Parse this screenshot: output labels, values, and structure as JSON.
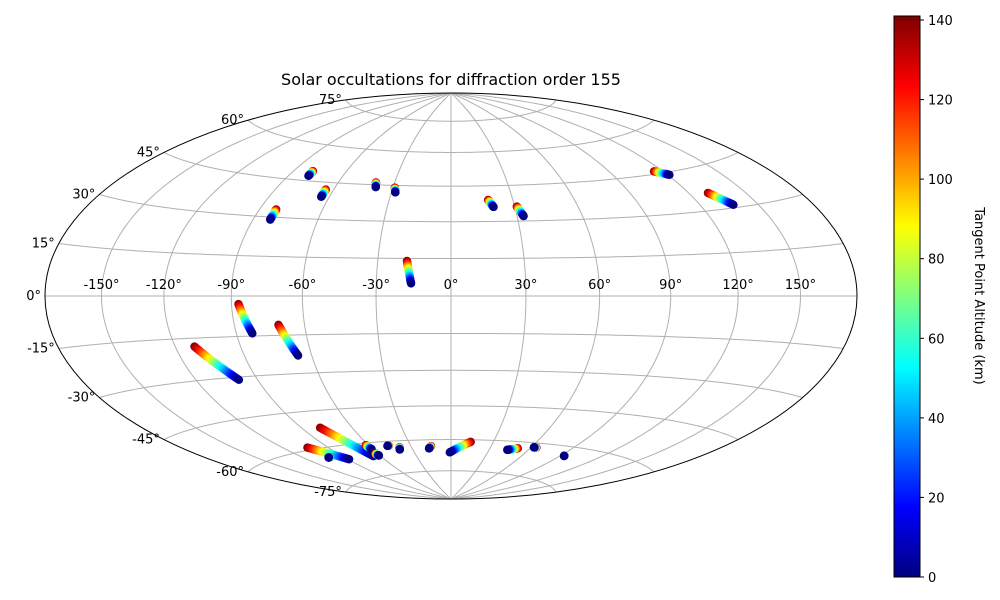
{
  "chart_data": {
    "type": "scatter",
    "projection": "hammer",
    "title": "Solar occultations for diffraction order 155",
    "grid": true,
    "x_ticks": [
      "-150°",
      "-120°",
      "-90°",
      "-60°",
      "-30°",
      "0°",
      "30°",
      "60°",
      "90°",
      "120°",
      "150°"
    ],
    "x_tick_values": [
      -150,
      -120,
      -90,
      -60,
      -30,
      0,
      30,
      60,
      90,
      120,
      150
    ],
    "y_ticks": [
      "-75°",
      "-60°",
      "-45°",
      "-30°",
      "-15°",
      "0°",
      "15°",
      "30°",
      "45°",
      "60°",
      "75°"
    ],
    "y_tick_values": [
      -75,
      -60,
      -45,
      -30,
      -15,
      0,
      15,
      30,
      45,
      60,
      75
    ],
    "colorbar": {
      "label": "Tangent Point Altitude (km)",
      "ticks": [
        "0",
        "20",
        "40",
        "60",
        "80",
        "100",
        "120",
        "140"
      ],
      "tick_values": [
        0,
        20,
        40,
        60,
        80,
        100,
        120,
        140
      ],
      "range": [
        0,
        141
      ],
      "colormap": "jet"
    },
    "tracks": [
      {
        "lon_start": -79,
        "lat_start": 49,
        "lon_end": -79,
        "lat_end": 47,
        "alt_start": 140,
        "alt_end": 0
      },
      {
        "lon_start": -64,
        "lat_start": 42,
        "lon_end": -64,
        "lat_end": 39,
        "alt_start": 140,
        "alt_end": 0
      },
      {
        "lon_start": -40,
        "lat_start": 46,
        "lon_end": -39,
        "lat_end": 44,
        "alt_start": 140,
        "alt_end": 0
      },
      {
        "lon_start": -29,
        "lat_start": 44,
        "lon_end": -28,
        "lat_end": 42,
        "alt_start": 140,
        "alt_end": 0
      },
      {
        "lon_start": -82,
        "lat_start": 33,
        "lon_end": -82,
        "lat_end": 29,
        "alt_start": 140,
        "alt_end": 0
      },
      {
        "lon_start": -18,
        "lat_start": 14,
        "lon_end": -16,
        "lat_end": 5,
        "alt_start": 140,
        "alt_end": 0
      },
      {
        "lon_start": 18,
        "lat_start": 39,
        "lon_end": 20,
        "lat_end": 36,
        "alt_start": 140,
        "alt_end": 0
      },
      {
        "lon_start": 31,
        "lat_start": 36,
        "lon_end": 33,
        "lat_end": 32,
        "alt_start": 140,
        "alt_end": 0
      },
      {
        "lon_start": 115,
        "lat_start": 46,
        "lon_end": 121,
        "lat_end": 44,
        "alt_start": 140,
        "alt_end": 0
      },
      {
        "lon_start": 130,
        "lat_start": 36,
        "lon_end": 137,
        "lat_end": 31,
        "alt_start": 140,
        "alt_end": 0
      },
      {
        "lon_start": -87,
        "lat_start": -3,
        "lon_end": -83,
        "lat_end": -14,
        "alt_start": 140,
        "alt_end": 0
      },
      {
        "lon_start": -71,
        "lat_start": -11,
        "lon_end": -66,
        "lat_end": -23,
        "alt_start": 140,
        "alt_end": 0
      },
      {
        "lon_start": -111,
        "lat_start": -18,
        "lon_end": -99,
        "lat_end": -31,
        "alt_start": 140,
        "alt_end": 0
      },
      {
        "lon_start": -104,
        "lat_start": -59,
        "lon_end": -89,
        "lat_end": -66,
        "alt_start": 140,
        "alt_end": 0
      },
      {
        "lon_start": -79,
        "lat_start": -52,
        "lon_end": -66,
        "lat_end": -66,
        "alt_start": 140,
        "alt_end": 0
      },
      {
        "lon_start": -62,
        "lat_start": -61,
        "lon_end": -61,
        "lat_end": -63,
        "alt_start": 140,
        "alt_end": 0
      },
      {
        "lon_start": -39,
        "lat_start": -63,
        "lon_end": -40,
        "lat_end": -64,
        "alt_start": 140,
        "alt_end": 0
      },
      {
        "lon_start": -15,
        "lat_start": -63,
        "lon_end": -17,
        "lat_end": -64,
        "alt_start": 140,
        "alt_end": 0
      },
      {
        "lon_start": 14,
        "lat_start": -61,
        "lon_end": -1,
        "lat_end": -66,
        "alt_start": 140,
        "alt_end": 0
      },
      {
        "lon_start": 51,
        "lat_start": -63,
        "lon_end": 44,
        "lat_end": -64,
        "alt_start": 140,
        "alt_end": 0
      },
      {
        "lon_start": 64,
        "lat_start": -62,
        "lon_end": 62,
        "lat_end": -62,
        "alt_start": 140,
        "alt_end": 0
      },
      {
        "lon_start": -101,
        "lat_start": -64,
        "lon_end": -102,
        "lat_end": -64,
        "alt_start": 140,
        "alt_end": 0
      },
      {
        "lon_start": -46,
        "lat_start": -62,
        "lon_end": -47,
        "lat_end": -62,
        "alt_start": 140,
        "alt_end": 0
      },
      {
        "lon_start": -62,
        "lat_start": -65,
        "lon_end": -61,
        "lat_end": -66,
        "alt_start": 140,
        "alt_end": 0
      },
      {
        "lon_start": 93,
        "lat_start": -64,
        "lon_end": 93,
        "lat_end": -64,
        "alt_start": 0,
        "alt_end": 0
      }
    ]
  }
}
